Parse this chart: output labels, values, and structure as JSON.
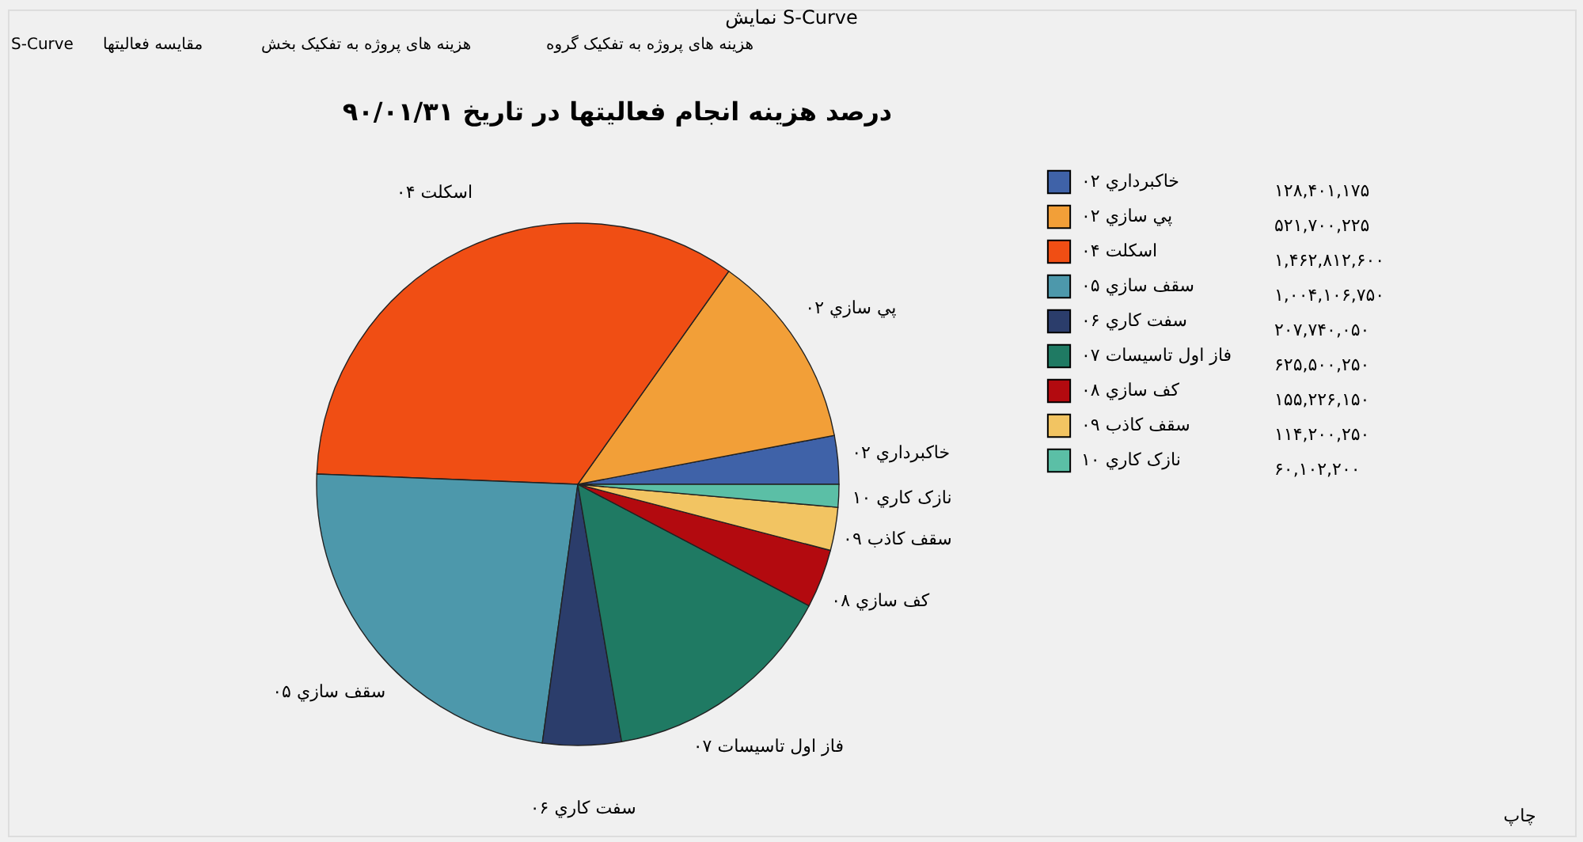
{
  "chart_data": {
    "type": "pie",
    "title": "درصد هزینه انجام فعالیتها در تاریخ ۹۰/۰۱/۳۱",
    "categories": [
      "خاکبرداري ۰۲",
      "پي سازي ۰۲",
      "اسکلت ۰۴",
      "سقف سازي ۰۵",
      "سفت کاري ۰۶",
      "فاز اول تاسيسات ۰۷",
      "کف سازي ۰۸",
      "سقف کاذب ۰۹",
      "نازک کاري ۱۰"
    ],
    "values": [
      128401175,
      521700225,
      1462812600,
      1004106750,
      207740050,
      625500250,
      155226150,
      114200250,
      60102200
    ],
    "value_labels": [
      "۱۲۸,۴۰۱,۱۷۵",
      "۵۲۱,۷۰۰,۲۲۵",
      "۱,۴۶۲,۸۱۲,۶۰۰",
      "۱,۰۰۴,۱۰۶,۷۵۰",
      "۲۰۷,۷۴۰,۰۵۰",
      "۶۲۵,۵۰۰,۲۵۰",
      "۱۵۵,۲۲۶,۱۵۰",
      "۱۱۴,۲۰۰,۲۵۰",
      "۶۰,۱۰۲,۲۰۰"
    ],
    "colors": [
      "#3f62a8",
      "#f29f38",
      "#f04e14",
      "#4d98ab",
      "#2b3d6b",
      "#1f7a63",
      "#b30a0f",
      "#f2c462",
      "#5bbfa6"
    ],
    "legend": "top right",
    "annotations": [
      "نمایش S-Curve",
      "S-Curve",
      "مقایسه فعالیتها",
      "هزینه های پروژه به تفکیک بخش",
      "هزینه های پروژه به تفکیک گروه",
      "چاپ"
    ]
  }
}
